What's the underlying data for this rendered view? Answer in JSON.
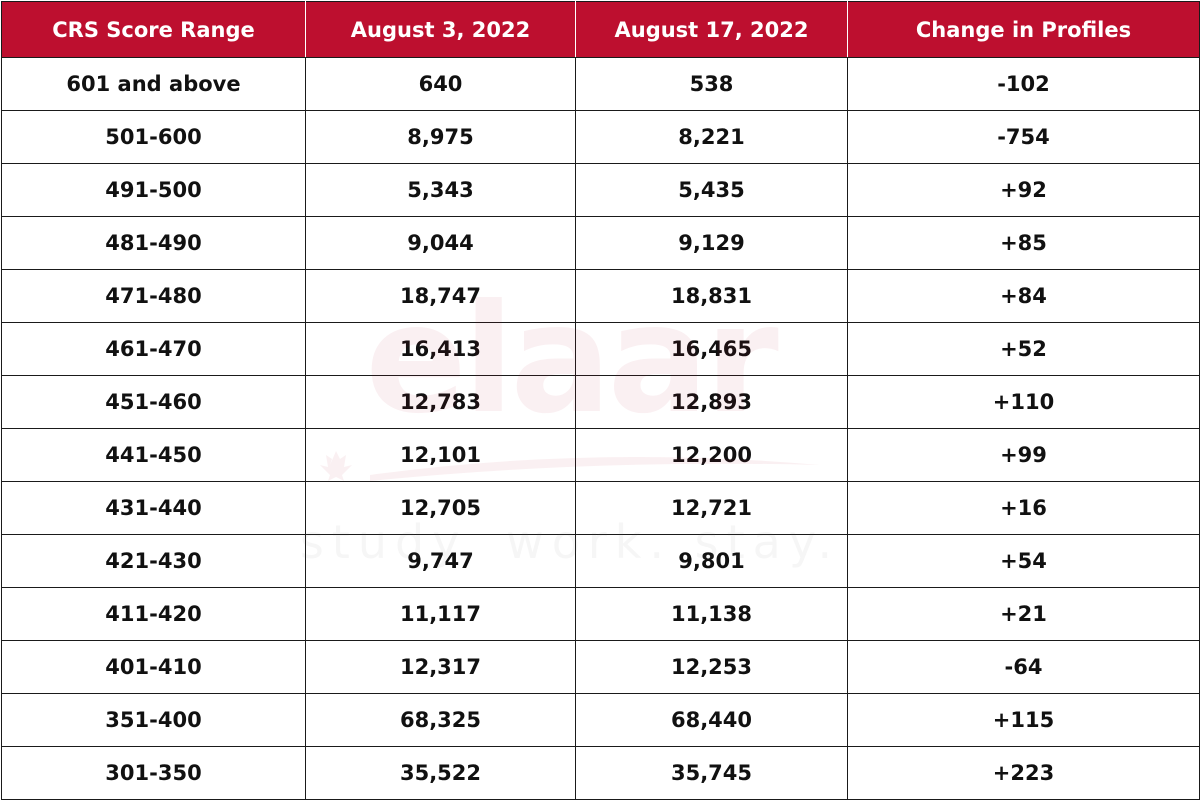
{
  "table": {
    "headers": [
      "CRS Score Range",
      "August 3, 2022",
      "August 17, 2022",
      "Change in Profiles"
    ],
    "rows": [
      [
        "601 and above",
        "640",
        "538",
        "-102"
      ],
      [
        "501-600",
        "8,975",
        "8,221",
        "-754"
      ],
      [
        "491-500",
        "5,343",
        "5,435",
        "+92"
      ],
      [
        "481-490",
        "9,044",
        "9,129",
        "+85"
      ],
      [
        "471-480",
        "18,747",
        "18,831",
        "+84"
      ],
      [
        "461-470",
        "16,413",
        "16,465",
        "+52"
      ],
      [
        "451-460",
        "12,783",
        "12,893",
        "+110"
      ],
      [
        "441-450",
        "12,101",
        "12,200",
        "+99"
      ],
      [
        "431-440",
        "12,705",
        "12,721",
        "+16"
      ],
      [
        "421-430",
        "9,747",
        "9,801",
        "+54"
      ],
      [
        "411-420",
        "11,117",
        "11,138",
        "+21"
      ],
      [
        "401-410",
        "12,317",
        "12,253",
        "-64"
      ],
      [
        "351-400",
        "68,325",
        "68,440",
        "+115"
      ],
      [
        "301-350",
        "35,522",
        "35,745",
        "+223"
      ]
    ]
  },
  "watermark": {
    "logo_text": "elaar",
    "tagline": "study. work. stay."
  },
  "colors": {
    "header_background": "#bd0f2f",
    "header_text": "#ffffff",
    "body_text": "#111111",
    "grid_line": "#1a1a1a"
  }
}
